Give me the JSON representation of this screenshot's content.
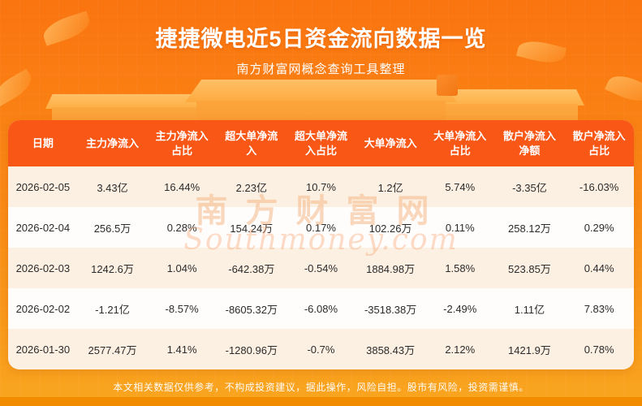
{
  "page": {
    "title": "捷捷微电近5日资金流向数据一览",
    "subtitle": "南方财富网概念查询工具整理",
    "disclaimer": "本文相关数据仅供参考，不构成投资建议，据此操作，风险自担。股市有风险，投资需谨慎。",
    "watermark": {
      "line1": "南方财富网",
      "line2": "Southmoney.com"
    }
  },
  "colors": {
    "background_top": "#fa7410",
    "background_bottom": "#f9a51f",
    "table_header": "#f95716",
    "row_odd": "#fcf0e2",
    "row_even": "#fffdfb",
    "bottom_strip": "#f18c00",
    "title_text": "#ffffff",
    "cell_text": "#2b2b2b",
    "watermark_text": "#f4b280"
  },
  "chart_data": {
    "type": "table",
    "title": "捷捷微电近5日资金流向数据一览",
    "columns": [
      "日期",
      "主力净流入",
      "主力净流入占比",
      "超大单净流入",
      "超大单净流入占比",
      "大单净流入",
      "大单净流入占比",
      "散户净流入净额",
      "散户净流入占比"
    ],
    "rows": [
      [
        "2026-02-05",
        "3.43亿",
        "16.44%",
        "2.23亿",
        "10.7%",
        "1.2亿",
        "5.74%",
        "-3.35亿",
        "-16.03%"
      ],
      [
        "2026-02-04",
        "256.5万",
        "0.28%",
        "154.24万",
        "0.17%",
        "102.26万",
        "0.11%",
        "258.12万",
        "0.29%"
      ],
      [
        "2026-02-03",
        "1242.6万",
        "1.04%",
        "-642.38万",
        "-0.54%",
        "1884.98万",
        "1.58%",
        "523.85万",
        "0.44%"
      ],
      [
        "2026-02-02",
        "-1.21亿",
        "-8.57%",
        "-8605.32万",
        "-6.08%",
        "-3518.38万",
        "-2.49%",
        "1.11亿",
        "7.83%"
      ],
      [
        "2026-01-30",
        "2577.47万",
        "1.41%",
        "-1280.96万",
        "-0.7%",
        "3858.43万",
        "2.12%",
        "1421.9万",
        "0.78%"
      ]
    ]
  }
}
